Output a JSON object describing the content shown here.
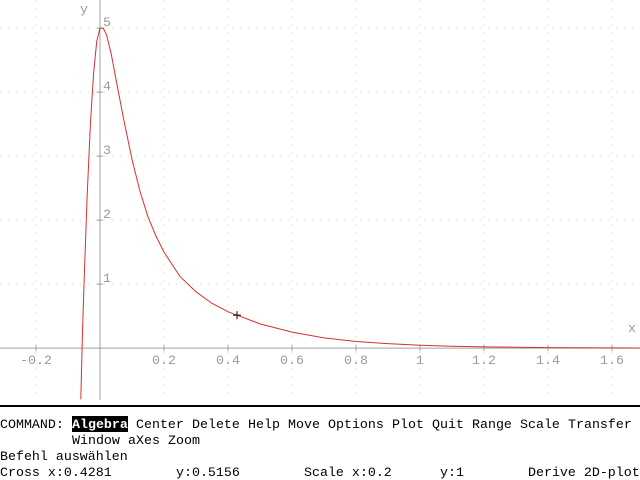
{
  "chart_data": {
    "type": "line",
    "x_label": "x",
    "y_label": "y",
    "xlim": [
      -0.3125,
      1.6875
    ],
    "ylim": [
      -0.81,
      5.44
    ],
    "xticks": [
      -0.2,
      0.2,
      0.4,
      0.6,
      0.8,
      1,
      1.2,
      1.4,
      1.6
    ],
    "yticks": [
      1,
      2,
      3,
      4,
      5
    ],
    "grid": true,
    "series": [
      {
        "color": "#d83030",
        "x": [
          -0.06,
          -0.055,
          -0.05,
          -0.04,
          -0.03,
          -0.02,
          -0.01,
          0,
          0.01,
          0.02,
          0.035,
          0.05,
          0.075,
          0.1,
          0.125,
          0.15,
          0.175,
          0.2,
          0.25,
          0.3,
          0.35,
          0.4,
          0.4281,
          0.5,
          0.6,
          0.7,
          0.8,
          0.9,
          1,
          1.1,
          1.2,
          1.4,
          1.6,
          1.6875
        ],
        "y": [
          -0.8,
          0.2,
          1.0,
          2.4,
          3.5,
          4.3,
          4.8,
          5.0,
          5.0,
          4.9,
          4.6,
          4.2,
          3.55,
          2.95,
          2.45,
          2.05,
          1.75,
          1.5,
          1.12,
          0.88,
          0.7,
          0.57,
          0.5156,
          0.38,
          0.25,
          0.16,
          0.105,
          0.07,
          0.045,
          0.03,
          0.02,
          0.009,
          0.004,
          0.003
        ]
      }
    ],
    "cross": {
      "x": 0.4281,
      "y": 0.5156
    }
  },
  "menu": {
    "prompt": "COMMAND:",
    "rows": [
      [
        "Algebra",
        "Center",
        "Delete",
        "Help",
        "Move",
        "Options",
        "Plot",
        "Quit",
        "Range",
        "Scale",
        "Transfer"
      ],
      [
        "Window",
        "aXes",
        "Zoom"
      ]
    ],
    "hint": "Befehl auswählen"
  },
  "status": {
    "cross_x": "Cross x:0.4281",
    "cross_y": "y:0.5156",
    "scale_x": "Scale x:0.2",
    "scale_y": "y:1",
    "mode": "Derive 2D-plot"
  }
}
